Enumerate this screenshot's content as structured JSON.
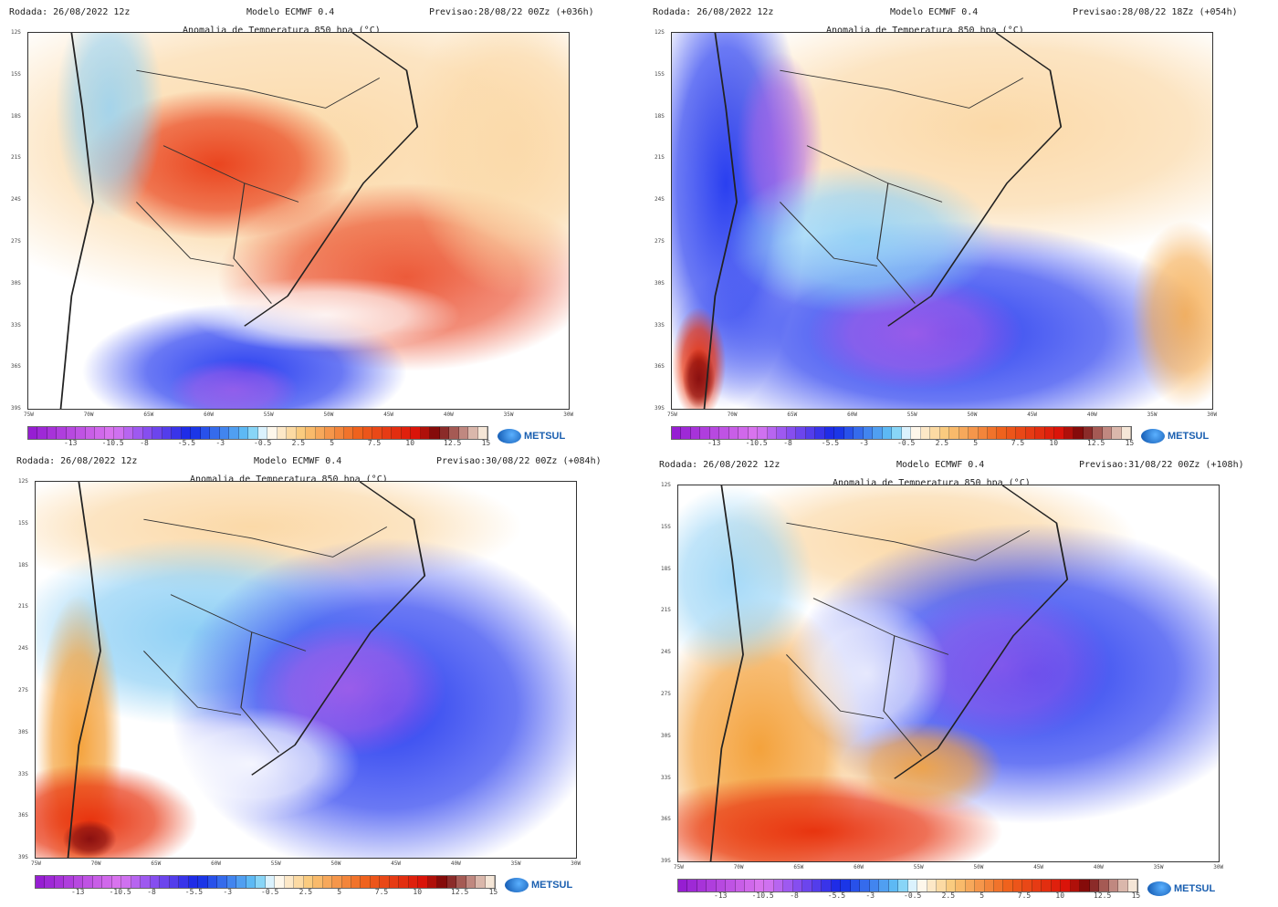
{
  "panels": [
    {
      "rodada": "Rodada: 26/08/2022 12z",
      "modelo": "Modelo ECMWF 0.4",
      "previsao": "Previsao:28/08/22 00Zz (+036h)",
      "title": "Anomalia de Temperatura 850 hpa (°C)",
      "brand": "METSUL"
    },
    {
      "rodada": "Rodada: 26/08/2022 12z",
      "modelo": "Modelo ECMWF 0.4",
      "previsao": "Previsao:28/08/22 18Zz (+054h)",
      "title": "Anomalia de Temperatura 850 hpa (°C)",
      "brand": "METSUL"
    },
    {
      "rodada": "Rodada: 26/08/2022 12z",
      "modelo": "Modelo ECMWF 0.4",
      "previsao": "Previsao:30/08/22 00Zz (+084h)",
      "title": "Anomalia de Temperatura 850 hpa (°C)",
      "brand": "METSUL"
    },
    {
      "rodada": "Rodada: 26/08/2022 12z",
      "modelo": "Modelo ECMWF 0.4",
      "previsao": "Previsao:31/08/22 00Zz (+108h)",
      "title": "Anomalia de Temperatura 850 hpa (°C)",
      "brand": "METSUL"
    }
  ],
  "lat_ticks": [
    "12S",
    "15S",
    "18S",
    "21S",
    "24S",
    "27S",
    "30S",
    "33S",
    "36S",
    "39S"
  ],
  "lon_ticks": [
    "75W",
    "70W",
    "65W",
    "60W",
    "55W",
    "50W",
    "45W",
    "40W",
    "35W",
    "30W"
  ],
  "colorbar": {
    "labels": [
      "-13",
      "-10.5",
      "-8",
      "-5.5",
      "-3",
      "-0.5",
      "2.5",
      "5",
      "7.5",
      "10",
      "12.5",
      "15"
    ],
    "range": [
      -15,
      16
    ]
  },
  "colors": {
    "cold": "#3a1fe0",
    "very_cold": "#b05be0",
    "neutral": "#ffffff",
    "warm": "#f5a640",
    "hot": "#e02010"
  }
}
